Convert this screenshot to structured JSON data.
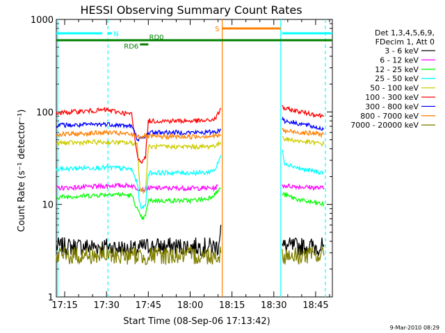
{
  "chart_data": {
    "type": "line",
    "title": "HESSI Observing Summary Count Rates",
    "xlabel": "Start Time (08-Sep-06 17:13:42)",
    "ylabel": "Count Rate (s⁻¹ detector⁻¹)",
    "y_scale": "log",
    "ylim": [
      1,
      1000
    ],
    "y_ticks": [
      "1",
      "10",
      "100",
      "1000"
    ],
    "xlim_minutes_after_1700": [
      12,
      111
    ],
    "x_ticks": [
      {
        "label": "17:15",
        "m": 15
      },
      {
        "label": "17:30",
        "m": 30
      },
      {
        "label": "17:45",
        "m": 45
      },
      {
        "label": "18:00",
        "m": 60
      },
      {
        "label": "18:15",
        "m": 75
      },
      {
        "label": "18:30",
        "m": 90
      },
      {
        "label": "18:45",
        "m": 105
      }
    ],
    "legend_header": [
      "Det 1,3,4,5,6,9,",
      "FDecim 1, Att 0"
    ],
    "legend_position": "right",
    "series": [
      {
        "name": "3 - 6 keV",
        "color": "#000000",
        "segments": [
          {
            "x": [
              12,
              30,
              41,
              43,
              45,
              60,
              66,
              70,
              71
            ],
            "y": [
              3.5,
              3.5,
              3.2,
              3.5,
              3.5,
              3.5,
              3.5,
              3.5,
              6
            ]
          },
          {
            "x": [
              93,
              100,
              108
            ],
            "y": [
              3.5,
              3.5,
              3.5
            ]
          }
        ]
      },
      {
        "name": "6 - 12 keV",
        "color": "#ff00ff",
        "segments": [
          {
            "x": [
              12,
              25,
              32,
              39,
              41,
              43,
              44,
              45,
              60,
              66,
              69,
              70
            ],
            "y": [
              15,
              15.5,
              16,
              16,
              15,
              14.5,
              14.5,
              15,
              15,
              15,
              15,
              16
            ]
          },
          {
            "x": [
              93,
              100,
              108
            ],
            "y": [
              16,
              15.5,
              15
            ]
          }
        ]
      },
      {
        "name": "12 - 25 keV",
        "color": "#00ff00",
        "segments": [
          {
            "x": [
              12,
              25,
              32,
              39,
              41,
              42,
              43,
              44,
              45,
              60,
              66,
              69,
              70,
              71
            ],
            "y": [
              12,
              12.5,
              13,
              12.5,
              9,
              7.5,
              7,
              7.5,
              11,
              11,
              11.5,
              13,
              14,
              15
            ]
          },
          {
            "x": [
              93,
              100,
              108
            ],
            "y": [
              13,
              11,
              10
            ]
          }
        ]
      },
      {
        "name": "25 - 50 keV",
        "color": "#00ffff",
        "segments": [
          {
            "x": [
              12,
              25,
              32,
              39,
              41,
              42,
              43,
              44,
              45,
              60,
              66,
              69,
              70,
              71
            ],
            "y": [
              24,
              25,
              25,
              24,
              17,
              10,
              9,
              10,
              22,
              22,
              22,
              24,
              28,
              34
            ]
          },
          {
            "x": [
              93,
              94,
              100,
              108
            ],
            "y": [
              38,
              28,
              24,
              22
            ]
          }
        ]
      },
      {
        "name": "50 - 100 keV",
        "color": "#cccc00",
        "segments": [
          {
            "x": [
              12,
              25,
              32,
              39,
              41,
              42,
              43,
              44,
              45,
              60,
              66,
              70,
              71
            ],
            "y": [
              46,
              47,
              47,
              46,
              45,
              15,
              14,
              14,
              42,
              42,
              42,
              44,
              47
            ]
          },
          {
            "x": [
              93,
              94,
              100,
              108
            ],
            "y": [
              55,
              51,
              48,
              45
            ]
          }
        ]
      },
      {
        "name": "100 - 300 keV",
        "color": "#ff0000",
        "segments": [
          {
            "x": [
              12,
              20,
              30,
              39,
              41,
              42,
              43,
              44,
              45,
              60,
              66,
              69,
              70,
              71
            ],
            "y": [
              97,
              101,
              105,
              94,
              34,
              30,
              29,
              33,
              80,
              80,
              80,
              84,
              95,
              110
            ]
          },
          {
            "x": [
              93,
              94,
              100,
              108
            ],
            "y": [
              115,
              108,
              100,
              90
            ]
          }
        ]
      },
      {
        "name": "300 - 800 keV",
        "color": "#0000ff",
        "segments": [
          {
            "x": [
              12,
              20,
              30,
              39,
              41,
              42,
              43,
              44,
              45,
              60,
              66,
              70,
              71
            ],
            "y": [
              72,
              72,
              74,
              70,
              52,
              51,
              52,
              53,
              60,
              60,
              60,
              62,
              64
            ]
          },
          {
            "x": [
              93,
              94,
              100,
              108
            ],
            "y": [
              86,
              80,
              74,
              65
            ]
          }
        ]
      },
      {
        "name": "800 - 7000 keV",
        "color": "#ff7f00",
        "segments": [
          {
            "x": [
              12,
              20,
              30,
              39,
              41,
              42,
              43,
              44,
              45,
              60,
              66,
              70,
              71
            ],
            "y": [
              57,
              58,
              60,
              57,
              55,
              54,
              54,
              55,
              54,
              54,
              55,
              55,
              57
            ]
          },
          {
            "x": [
              93,
              94,
              100,
              108
            ],
            "y": [
              64,
              62,
              60,
              57
            ]
          }
        ]
      },
      {
        "name": "7000 - 20000 keV",
        "color": "#808000",
        "segments": [
          {
            "x": [
              12,
              30,
              41,
              43,
              45,
              60,
              66,
              70,
              71
            ],
            "y": [
              2.8,
              2.8,
              2.8,
              2.7,
              2.8,
              2.8,
              2.8,
              2.8,
              3
            ]
          },
          {
            "x": [
              93,
              100,
              108
            ],
            "y": [
              2.8,
              2.8,
              2.8
            ]
          }
        ]
      }
    ],
    "flag_bars": [
      {
        "label": "N",
        "color": "#00ffff",
        "segments": [
          [
            12,
            28.5
          ],
          [
            30.5,
            32
          ],
          [
            93,
            111
          ]
        ]
      },
      {
        "label": "S",
        "color": "#ff7f00",
        "segments": [
          [
            71.5,
            92.5
          ]
        ]
      },
      {
        "label": "RD0",
        "color": "#008000",
        "segments": [
          [
            12,
            111
          ]
        ]
      },
      {
        "label": "RD6",
        "color": "#008000",
        "segments": [
          [
            42,
            45
          ]
        ]
      }
    ],
    "vertical_markers": [
      {
        "m": 12.5,
        "color": "#00ffff",
        "style": "solid"
      },
      {
        "m": 30.5,
        "color": "#00ffff",
        "style": "dashed"
      },
      {
        "m": 71.5,
        "color": "#ff7f00",
        "style": "solid"
      },
      {
        "m": 92.5,
        "color": "#00ffff",
        "style": "solid"
      },
      {
        "m": 108.5,
        "color": "#00ffff",
        "style": "dashed"
      }
    ]
  },
  "footer": {
    "timestamp": "9-Mar-2010 08:29"
  }
}
